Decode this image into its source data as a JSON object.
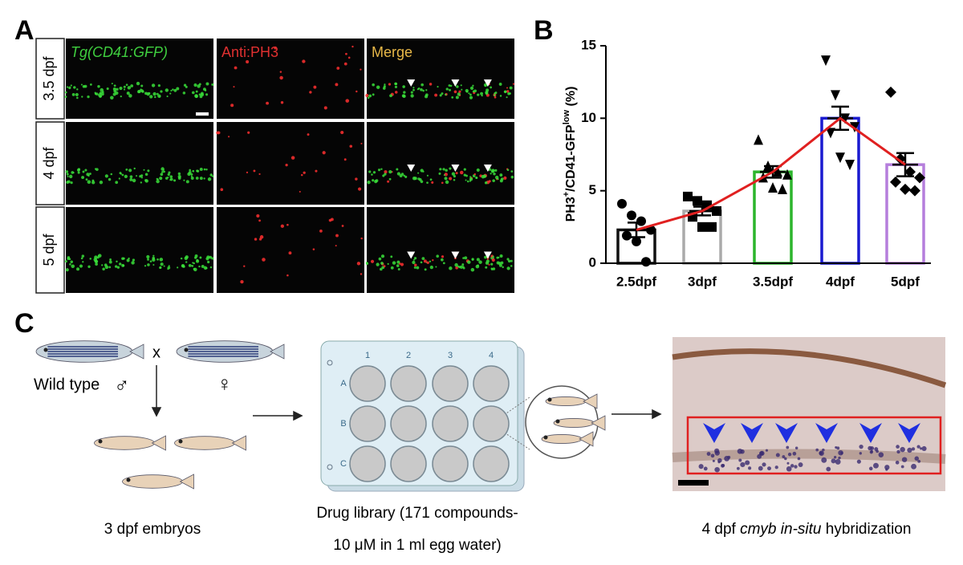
{
  "panel_labels": [
    "A",
    "B",
    "C"
  ],
  "panel_a": {
    "columns": [
      "Tg(CD41:GFP)",
      "Anti:PH3",
      "Merge"
    ],
    "column_colors": [
      "#3fcf3f",
      "#e03030",
      "#e8b848"
    ],
    "rows": [
      "3.5 dpf",
      "4 dpf",
      "5 dpf"
    ]
  },
  "chart_data": {
    "type": "bar",
    "ylabel_parts": [
      {
        "text": "PH3"
      },
      {
        "text": "+",
        "sup": true
      },
      {
        "text": "/CD41-GFP"
      },
      {
        "text": "low",
        "sup": true
      },
      {
        "text": " (%)"
      }
    ],
    "categories": [
      "2.5dpf",
      "3dpf",
      "3.5dpf",
      "4dpf",
      "5dpf"
    ],
    "values": [
      2.3,
      3.6,
      6.3,
      10.0,
      6.8
    ],
    "errors": [
      0.5,
      0.3,
      0.4,
      0.8,
      0.8
    ],
    "colors": [
      "#111111",
      "#aaaaaa",
      "#2cb52c",
      "#1a1ad0",
      "#b57edc"
    ],
    "markers": [
      "circle",
      "square",
      "triangle-up",
      "triangle-down",
      "diamond"
    ],
    "points": [
      [
        4.1,
        3.3,
        2.9,
        2.3,
        1.9,
        1.5,
        0.1
      ],
      [
        4.6,
        4.3,
        4.0,
        3.6,
        3.2,
        2.5,
        2.5
      ],
      [
        8.5,
        6.7,
        6.3,
        6.1,
        5.9,
        5.2,
        5.1
      ],
      [
        14.0,
        11.6,
        10.0,
        9.4,
        9.0,
        7.3,
        6.8
      ],
      [
        11.8,
        7.2,
        6.3,
        5.9,
        5.6,
        5.1,
        5.0
      ]
    ],
    "line_color": "#e02020",
    "ylim": [
      0,
      15
    ],
    "yticks": [
      0,
      5,
      10,
      15
    ]
  },
  "panel_c": {
    "wild_type": "Wild type",
    "male": "♂",
    "cross": "x",
    "female": "♀",
    "embryos": "3 dpf embryos",
    "plate_columns": [
      "1",
      "2",
      "3",
      "4"
    ],
    "plate_rows": [
      "A",
      "B",
      "C"
    ],
    "drug_library": [
      "Drug library (171 compounds-",
      "10 μM in 1 ml egg water)"
    ],
    "ish_caption": [
      {
        "text": "4 dpf "
      },
      {
        "text": "cmyb in-situ",
        "italic": true
      },
      {
        "text": " hybridization"
      }
    ]
  }
}
